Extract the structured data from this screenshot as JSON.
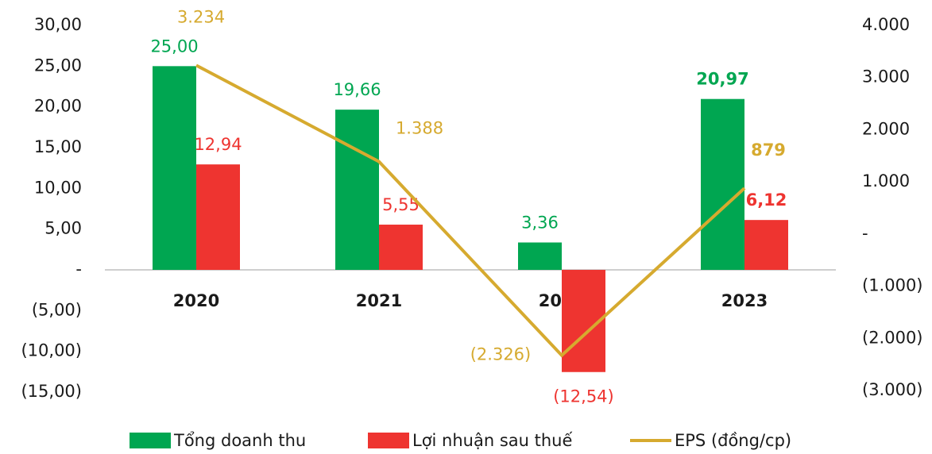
{
  "chart_data": {
    "type": "bar",
    "categories": [
      "2020",
      "2021",
      "2022",
      "2023"
    ],
    "series": [
      {
        "name": "Tổng doanh thu",
        "type": "bar",
        "color": "#00a651",
        "values": [
          25.0,
          19.66,
          3.36,
          20.97
        ],
        "value_labels": [
          "25,00",
          "19,66",
          "3,36",
          "20,97"
        ]
      },
      {
        "name": "Lợi nhuận sau thuế",
        "type": "bar",
        "color": "#ee3430",
        "values": [
          12.94,
          5.55,
          -12.54,
          6.12
        ],
        "value_labels": [
          "12,94",
          "5,55",
          "(12,54)",
          "6,12"
        ]
      },
      {
        "name": "EPS (đồng/cp)",
        "type": "line",
        "axis": "y2",
        "color": "#d6aa2f",
        "values": [
          3234,
          1388,
          -2326,
          879
        ],
        "value_labels": [
          "3.234",
          "1.388",
          "(2.326)",
          "879"
        ]
      }
    ],
    "ylim": [
      -15,
      30
    ],
    "yticks": [
      {
        "value": -15,
        "label": "(15,00)"
      },
      {
        "value": -10,
        "label": "(10,00)"
      },
      {
        "value": -5,
        "label": "(5,00)"
      },
      {
        "value": 0,
        "label": "-"
      },
      {
        "value": 5,
        "label": "5,00"
      },
      {
        "value": 10,
        "label": "10,00"
      },
      {
        "value": 15,
        "label": "15,00"
      },
      {
        "value": 20,
        "label": "20,00"
      },
      {
        "value": 25,
        "label": "25,00"
      },
      {
        "value": 30,
        "label": "30,00"
      }
    ],
    "y2lim": [
      -3000,
      4000
    ],
    "y2ticks": [
      {
        "value": -3000,
        "label": "(3.000)"
      },
      {
        "value": -2000,
        "label": "(2.000)"
      },
      {
        "value": -1000,
        "label": "(1.000)"
      },
      {
        "value": 0,
        "label": "-"
      },
      {
        "value": 1000,
        "label": "1.000"
      },
      {
        "value": 2000,
        "label": "2.000"
      },
      {
        "value": 3000,
        "label": "3.000"
      },
      {
        "value": 4000,
        "label": "4.000"
      }
    ],
    "legend": "bottom"
  }
}
